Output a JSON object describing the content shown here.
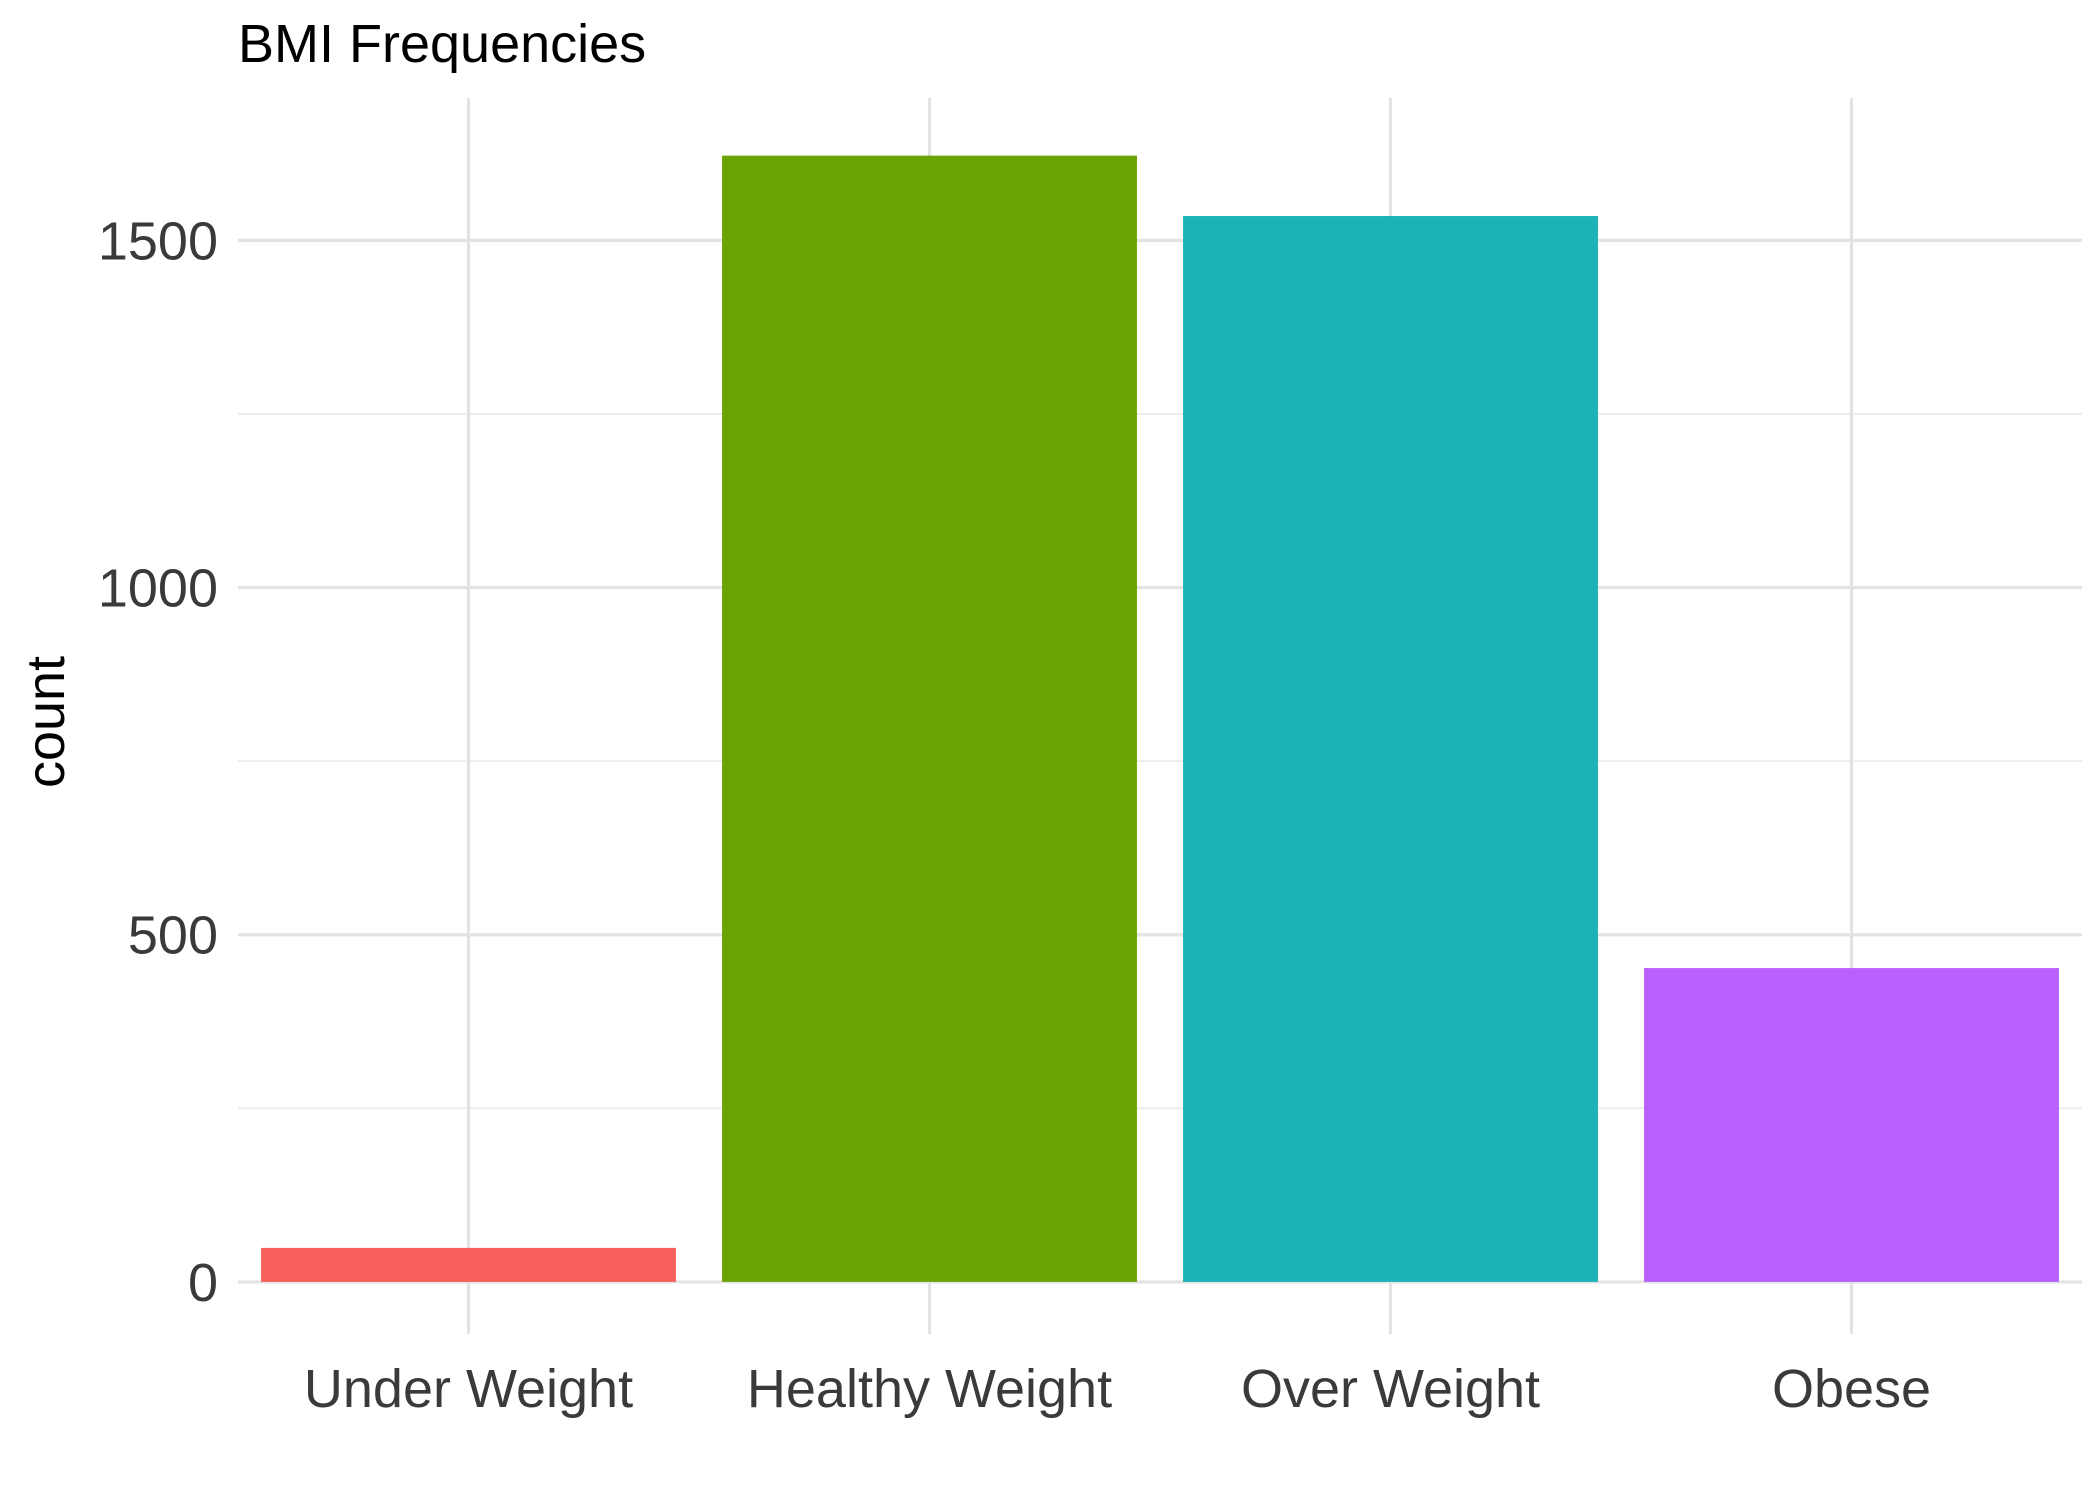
{
  "chart_data": {
    "type": "bar",
    "title": "BMI Frequencies",
    "xlabel": "",
    "ylabel": "count",
    "categories": [
      "Under Weight",
      "Healthy Weight",
      "Over Weight",
      "Obese"
    ],
    "values": [
      49,
      1622,
      1535,
      452
    ],
    "colors": [
      "#F8605C",
      "#6BA305",
      "#1BB3B7",
      "#B861FF"
    ],
    "ylim": [
      -75,
      1705
    ],
    "yticks": [
      0,
      500,
      1000,
      1500
    ],
    "ytick_labels": [
      "0",
      "500",
      "1000",
      "1500"
    ],
    "grid": true,
    "legend": "none"
  }
}
